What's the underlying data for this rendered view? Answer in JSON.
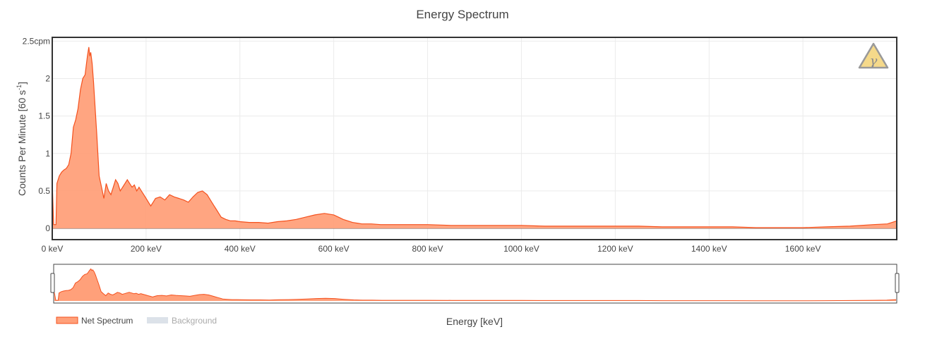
{
  "chart_data": {
    "type": "area",
    "title": "Energy Spectrum",
    "xlabel": "Energy [keV]",
    "ylabel": "Counts Per Minute [60 s",
    "ylabel_sup": "-1",
    "ylabel_close": "]",
    "xlim": [
      0,
      1800
    ],
    "ylim": [
      -0.15,
      2.55
    ],
    "x_ticks": [
      {
        "value": 0,
        "label": "0 keV"
      },
      {
        "value": 200,
        "label": "200 keV"
      },
      {
        "value": 400,
        "label": "400 keV"
      },
      {
        "value": 600,
        "label": "600 keV"
      },
      {
        "value": 800,
        "label": "800 keV"
      },
      {
        "value": 1000,
        "label": "1000 keV"
      },
      {
        "value": 1200,
        "label": "1200 keV"
      },
      {
        "value": 1400,
        "label": "1400 keV"
      },
      {
        "value": 1600,
        "label": "1600 keV"
      }
    ],
    "y_ticks": [
      {
        "value": 0,
        "label": "0"
      },
      {
        "value": 0.5,
        "label": "0.5"
      },
      {
        "value": 1,
        "label": "1"
      },
      {
        "value": 1.5,
        "label": "1.5"
      },
      {
        "value": 2,
        "label": "2"
      },
      {
        "value": 2.5,
        "label": "2.5cpm"
      }
    ],
    "grid": true,
    "legend_position": "bottom-left",
    "series": [
      {
        "name": "Net Spectrum",
        "visible": true,
        "color": "#f4511e",
        "fill": "#ffa07a",
        "x": [
          0,
          3,
          5,
          8,
          10,
          15,
          20,
          25,
          30,
          35,
          40,
          45,
          50,
          55,
          60,
          65,
          70,
          75,
          78,
          80,
          82,
          85,
          88,
          90,
          95,
          100,
          105,
          110,
          115,
          120,
          125,
          130,
          135,
          140,
          145,
          150,
          155,
          160,
          165,
          170,
          175,
          180,
          185,
          190,
          195,
          200,
          205,
          210,
          215,
          220,
          230,
          240,
          250,
          260,
          270,
          280,
          290,
          300,
          310,
          320,
          330,
          340,
          345,
          350,
          355,
          360,
          370,
          380,
          390,
          400,
          420,
          440,
          460,
          480,
          500,
          520,
          540,
          560,
          580,
          600,
          610,
          620,
          640,
          660,
          680,
          700,
          750,
          800,
          850,
          900,
          950,
          1000,
          1050,
          1100,
          1150,
          1200,
          1250,
          1300,
          1350,
          1400,
          1450,
          1500,
          1550,
          1600,
          1650,
          1700,
          1750,
          1780,
          1790,
          1800
        ],
        "values": [
          0.62,
          0.05,
          0.05,
          0.05,
          0.6,
          0.7,
          0.75,
          0.78,
          0.8,
          0.85,
          1.0,
          1.35,
          1.45,
          1.6,
          1.85,
          2.0,
          2.05,
          2.3,
          2.42,
          2.3,
          2.35,
          2.2,
          1.95,
          1.75,
          1.25,
          0.7,
          0.55,
          0.4,
          0.6,
          0.5,
          0.45,
          0.55,
          0.65,
          0.6,
          0.5,
          0.55,
          0.6,
          0.65,
          0.6,
          0.55,
          0.58,
          0.5,
          0.55,
          0.5,
          0.45,
          0.4,
          0.35,
          0.3,
          0.35,
          0.4,
          0.42,
          0.38,
          0.45,
          0.42,
          0.4,
          0.38,
          0.35,
          0.42,
          0.48,
          0.5,
          0.45,
          0.35,
          0.3,
          0.25,
          0.2,
          0.15,
          0.12,
          0.1,
          0.1,
          0.09,
          0.08,
          0.08,
          0.07,
          0.09,
          0.1,
          0.12,
          0.15,
          0.18,
          0.2,
          0.18,
          0.15,
          0.12,
          0.08,
          0.06,
          0.06,
          0.05,
          0.05,
          0.05,
          0.04,
          0.04,
          0.04,
          0.04,
          0.03,
          0.03,
          0.03,
          0.03,
          0.03,
          0.02,
          0.02,
          0.02,
          0.02,
          0.01,
          0.01,
          0.01,
          0.02,
          0.03,
          0.05,
          0.06,
          0.08,
          0.1
        ]
      },
      {
        "name": "Background",
        "visible": false,
        "color": "#d3dbe4",
        "fill": "#d3dbe4"
      }
    ]
  },
  "toolbar": {
    "gamma_badge_symbol": "γ"
  },
  "colors": {
    "axis_frame": "#333333",
    "grid": "#ebebeb",
    "badge_fill": "#f5d98a",
    "badge_stroke": "#999999"
  }
}
